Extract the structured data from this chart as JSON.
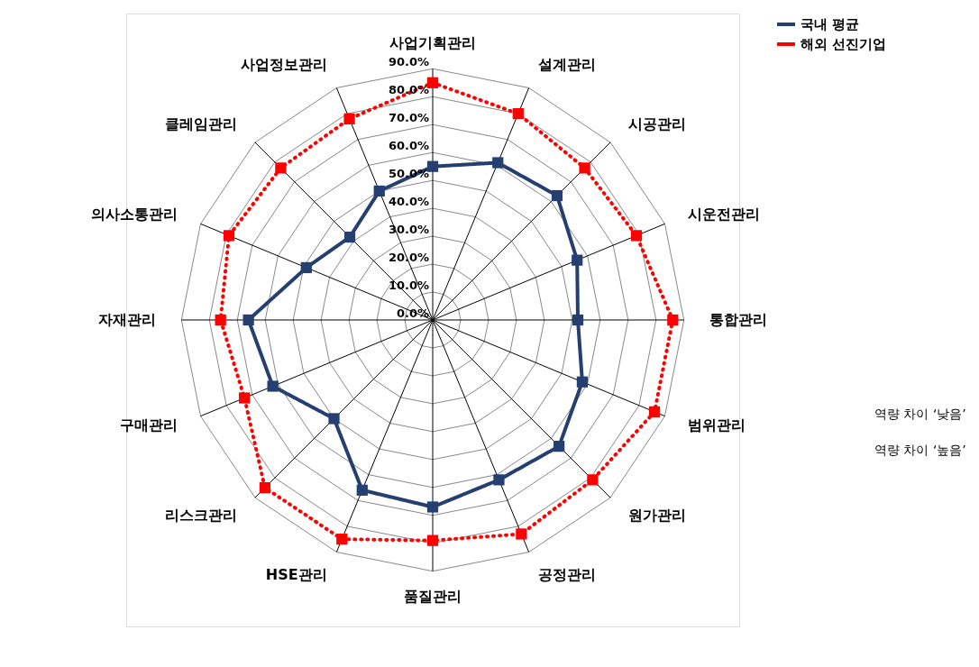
{
  "chart_data": {
    "type": "radar",
    "categories": [
      "사업기획관리",
      "설계관리",
      "시공관리",
      "시운전관리",
      "통합관리",
      "범위관리",
      "원가관리",
      "공정관리",
      "품질관리",
      "HSE관리",
      "리스크관리",
      "구매관리",
      "자재관리",
      "의사소통관리",
      "클레임관리",
      "사업정보관리"
    ],
    "series": [
      {
        "name": "국내 평균",
        "color": "#243f70",
        "line_style": "solid",
        "marker": "square",
        "values": [
          55,
          61,
          63,
          56,
          52,
          58,
          64,
          62,
          67,
          66,
          50,
          62,
          66,
          49,
          42,
          50
        ]
      },
      {
        "name": "해외 선진기업",
        "color": "#ff0000",
        "line_style": "dotted",
        "marker": "square",
        "values": [
          85,
          80,
          77,
          79,
          86,
          86,
          81,
          83,
          79,
          85,
          85,
          73,
          76,
          79,
          77,
          78
        ]
      }
    ],
    "ylim": [
      0,
      90
    ],
    "yticks": [
      {
        "value": 0,
        "label": "0.0%"
      },
      {
        "value": 10,
        "label": "10.0%"
      },
      {
        "value": 20,
        "label": "20.0%"
      },
      {
        "value": 30,
        "label": "30.0%"
      },
      {
        "value": 40,
        "label": "40.0%"
      },
      {
        "value": 50,
        "label": "50.0%"
      },
      {
        "value": 60,
        "label": "60.0%"
      },
      {
        "value": 70,
        "label": "70.0%"
      },
      {
        "value": 80,
        "label": "80.0%"
      },
      {
        "value": 90,
        "label": "90.0%"
      }
    ],
    "grid": true,
    "legend": "right",
    "annotations": [
      "역량 차이 ‘낮음’",
      "역량 차이 ‘높음’"
    ]
  }
}
